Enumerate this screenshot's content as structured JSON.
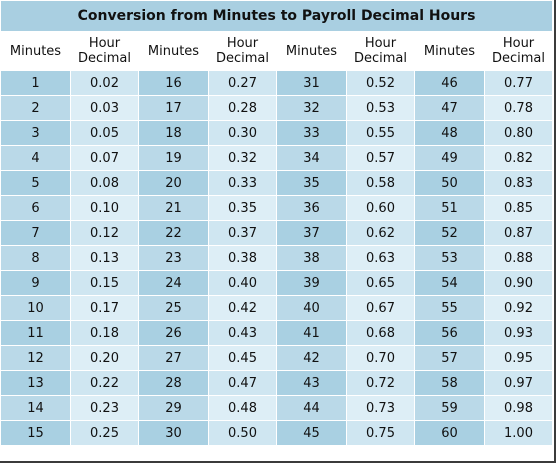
{
  "title": "Conversion from Minutes to Payroll Decimal Hours",
  "headers": {
    "minutes": "Minutes",
    "hour_line1": "Hour",
    "hour_line2": "Decimal"
  },
  "rows": [
    [
      "1",
      "0.02",
      "16",
      "0.27",
      "31",
      "0.52",
      "46",
      "0.77"
    ],
    [
      "2",
      "0.03",
      "17",
      "0.28",
      "32",
      "0.53",
      "47",
      "0.78"
    ],
    [
      "3",
      "0.05",
      "18",
      "0.30",
      "33",
      "0.55",
      "48",
      "0.80"
    ],
    [
      "4",
      "0.07",
      "19",
      "0.32",
      "34",
      "0.57",
      "49",
      "0.82"
    ],
    [
      "5",
      "0.08",
      "20",
      "0.33",
      "35",
      "0.58",
      "50",
      "0.83"
    ],
    [
      "6",
      "0.10",
      "21",
      "0.35",
      "36",
      "0.60",
      "51",
      "0.85"
    ],
    [
      "7",
      "0.12",
      "22",
      "0.37",
      "37",
      "0.62",
      "52",
      "0.87"
    ],
    [
      "8",
      "0.13",
      "23",
      "0.38",
      "38",
      "0.63",
      "53",
      "0.88"
    ],
    [
      "9",
      "0.15",
      "24",
      "0.40",
      "39",
      "0.65",
      "54",
      "0.90"
    ],
    [
      "10",
      "0.17",
      "25",
      "0.42",
      "40",
      "0.67",
      "55",
      "0.92"
    ],
    [
      "11",
      "0.18",
      "26",
      "0.43",
      "41",
      "0.68",
      "56",
      "0.93"
    ],
    [
      "12",
      "0.20",
      "27",
      "0.45",
      "42",
      "0.70",
      "57",
      "0.95"
    ],
    [
      "13",
      "0.22",
      "28",
      "0.47",
      "43",
      "0.72",
      "58",
      "0.97"
    ],
    [
      "14",
      "0.23",
      "29",
      "0.48",
      "44",
      "0.73",
      "59",
      "0.98"
    ],
    [
      "15",
      "0.25",
      "30",
      "0.50",
      "45",
      "0.75",
      "60",
      "1.00"
    ]
  ]
}
